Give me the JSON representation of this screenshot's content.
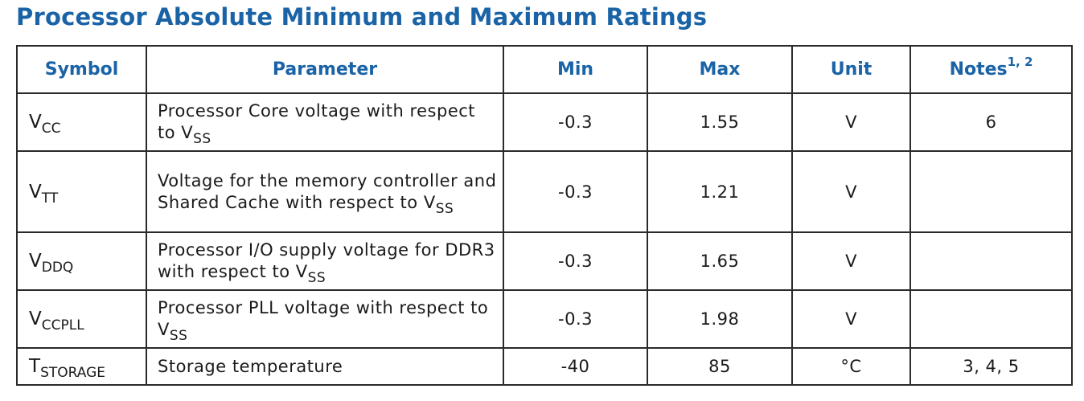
{
  "title": "Processor Absolute Minimum and Maximum Ratings",
  "table": {
    "headers": {
      "symbol": "Symbol",
      "parameter": "Parameter",
      "min": "Min",
      "max": "Max",
      "unit": "Unit",
      "notes": "Notes",
      "notes_sup": "1, 2"
    },
    "rows": [
      {
        "symbol_main": "V",
        "symbol_sub": "CC",
        "param_text": "Processor Core voltage with respect to V",
        "param_sub": "SS",
        "min": "-0.3",
        "max": "1.55",
        "unit": "V",
        "notes": "6"
      },
      {
        "symbol_main": "V",
        "symbol_sub": "TT",
        "param_text": "Voltage for the memory controller and Shared Cache with respect to V",
        "param_sub": "SS",
        "min": "-0.3",
        "max": "1.21",
        "unit": "V",
        "notes": ""
      },
      {
        "symbol_main": "V",
        "symbol_sub": "DDQ",
        "param_text": "Processor I/O supply voltage for DDR3 with respect to V",
        "param_sub": "SS",
        "min": "-0.3",
        "max": "1.65",
        "unit": "V",
        "notes": ""
      },
      {
        "symbol_main": "V",
        "symbol_sub": "CCPLL",
        "param_text": "Processor PLL voltage with respect to V",
        "param_sub": "SS",
        "min": "-0.3",
        "max": "1.98",
        "unit": "V",
        "notes": ""
      },
      {
        "symbol_main": "T",
        "symbol_sub": "STORAGE",
        "param_text": "Storage temperature",
        "param_sub": "",
        "min": "-40",
        "max": "85",
        "unit": "°C",
        "notes": "3, 4, 5"
      }
    ]
  }
}
